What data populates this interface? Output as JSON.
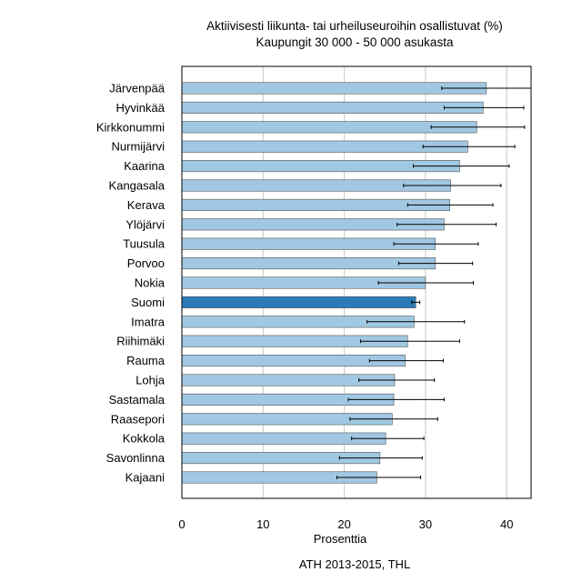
{
  "title_line1": "Aktiivisesti liikunta- tai urheiluseuroihin osallistuvat (%)",
  "title_line2": "Kaupungit 30 000 - 50 000 asukasta",
  "source": "ATH 2013-2015, THL",
  "colors": {
    "bar": "#a0c8e2",
    "highlight": "#2c7bb6",
    "grid": "#c8c8c8",
    "axis": "#000000"
  },
  "chart_data": {
    "type": "bar",
    "orientation": "horizontal",
    "xlabel": "Prosenttia",
    "xlim": [
      0,
      43
    ],
    "xticks": [
      0,
      10,
      20,
      30,
      40
    ],
    "grid": "vertical",
    "highlight": "Suomi",
    "categories": [
      "Järvenpää",
      "Hyvinkää",
      "Kirkkonummi",
      "Nurmijärvi",
      "Kaarina",
      "Kangasala",
      "Kerava",
      "Ylöjärvi",
      "Tuusula",
      "Porvoo",
      "Nokia",
      "Suomi",
      "Imatra",
      "Riihimäki",
      "Rauma",
      "Lohja",
      "Sastamala",
      "Raasepori",
      "Kokkola",
      "Savonlinna",
      "Kajaani"
    ],
    "values": [
      37.5,
      37.1,
      36.3,
      35.2,
      34.2,
      33.1,
      33.0,
      32.3,
      31.2,
      31.2,
      30.0,
      28.8,
      28.6,
      27.8,
      27.5,
      26.2,
      26.1,
      25.9,
      25.1,
      24.4,
      24.0
    ],
    "ci_low": [
      32.0,
      32.3,
      30.7,
      29.7,
      28.5,
      27.3,
      27.8,
      26.5,
      26.1,
      26.7,
      24.2,
      28.3,
      22.8,
      22.0,
      23.1,
      21.8,
      20.5,
      20.7,
      20.9,
      19.4,
      19.1
    ],
    "ci_high": [
      43.0,
      42.1,
      42.2,
      41.0,
      40.3,
      39.3,
      38.3,
      38.7,
      36.5,
      35.8,
      35.9,
      29.3,
      34.8,
      34.2,
      32.2,
      31.1,
      32.3,
      31.5,
      29.8,
      29.6,
      29.4
    ]
  }
}
